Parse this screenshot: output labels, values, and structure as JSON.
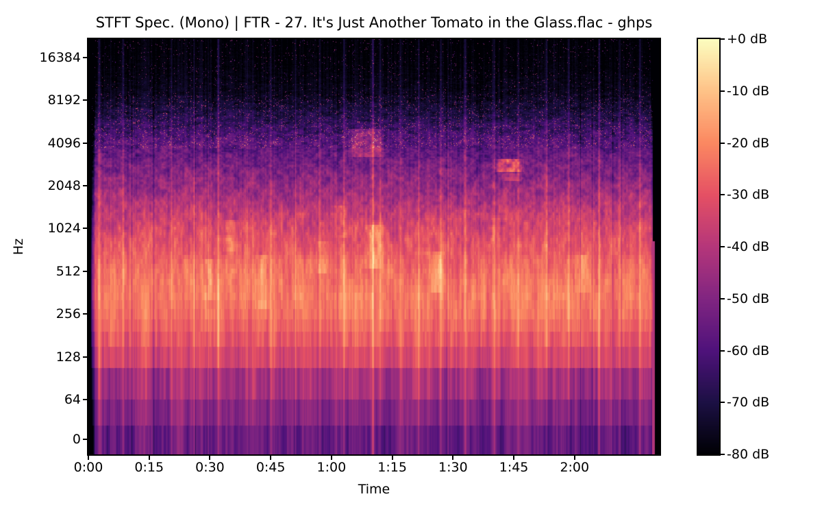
{
  "chart_data": {
    "type": "heatmap",
    "variant": "stft-spectrogram",
    "title": "STFT Spec. (Mono) | FTR - 27. It's Just Another Tomato in the Glass.flac - ghps",
    "xlabel": "Time",
    "ylabel": "Hz",
    "duration_seconds": 141,
    "max_frequency_hz": 22050,
    "y_scale": "log",
    "grid": false,
    "legend_position": "colorbar-right",
    "x_ticks": [
      {
        "label": "0:00",
        "s": 0
      },
      {
        "label": "0:15",
        "s": 15
      },
      {
        "label": "0:30",
        "s": 30
      },
      {
        "label": "0:45",
        "s": 45
      },
      {
        "label": "1:00",
        "s": 60
      },
      {
        "label": "1:15",
        "s": 75
      },
      {
        "label": "1:30",
        "s": 90
      },
      {
        "label": "1:45",
        "s": 105
      },
      {
        "label": "2:00",
        "s": 120
      }
    ],
    "y_ticks": [
      {
        "label": "16384",
        "hz": 16384
      },
      {
        "label": "8192",
        "hz": 8192
      },
      {
        "label": "4096",
        "hz": 4096
      },
      {
        "label": "2048",
        "hz": 2048
      },
      {
        "label": "1024",
        "hz": 1024
      },
      {
        "label": "512",
        "hz": 512
      },
      {
        "label": "256",
        "hz": 256
      },
      {
        "label": "128",
        "hz": 128
      },
      {
        "label": "64",
        "hz": 64
      },
      {
        "label": "0",
        "hz": 0
      }
    ],
    "colorbar": {
      "colormap": "magma",
      "db_range": [
        -80,
        0
      ],
      "ticks": [
        {
          "label": "+0 dB",
          "db": 0
        },
        {
          "label": "-10 dB",
          "db": -10
        },
        {
          "label": "-20 dB",
          "db": -20
        },
        {
          "label": "-30 dB",
          "db": -30
        },
        {
          "label": "-40 dB",
          "db": -40
        },
        {
          "label": "-50 dB",
          "db": -50
        },
        {
          "label": "-60 dB",
          "db": -60
        },
        {
          "label": "-70 dB",
          "db": -70
        },
        {
          "label": "-80 dB",
          "db": -80
        }
      ],
      "stops": [
        "#000004",
        "#1c1044",
        "#4f127b",
        "#812581",
        "#b5367a",
        "#e55064",
        "#fb8861",
        "#fec287",
        "#fcfdbf"
      ]
    },
    "spectral_profile": {
      "freqs_hz": [
        8,
        12,
        22,
        45,
        70,
        95,
        130,
        180,
        250,
        350,
        500,
        650,
        850,
        1100,
        1500,
        2000,
        2700,
        3600,
        4800,
        6500,
        9000,
        13000,
        18000,
        22050
      ],
      "mean_db": [
        -55,
        -54,
        -51,
        -49,
        -45,
        -42,
        -33,
        -28,
        -24,
        -22,
        -24,
        -27,
        -30,
        -34,
        -40,
        -46,
        -51,
        -56,
        -62,
        -70,
        -76,
        -78.5,
        -79.5,
        -80
      ],
      "spread_db": [
        8,
        8,
        8,
        8,
        9,
        9,
        8,
        7,
        6.5,
        6.5,
        7,
        7,
        8,
        9,
        9,
        9.5,
        10,
        10,
        9,
        7,
        4,
        2.5,
        1.5,
        1
      ]
    },
    "time_envelope": {
      "s": [
        0,
        0.35,
        0.9,
        1.8,
        138.8,
        139.25,
        139.3,
        141
      ],
      "db": [
        -80,
        -78,
        -30,
        0,
        0,
        -12,
        -80,
        -80
      ]
    },
    "transients": [
      {
        "t": 2.6,
        "db": 10
      },
      {
        "t": 8.5,
        "db": 8
      },
      {
        "t": 14,
        "db": 7
      },
      {
        "t": 20.5,
        "db": 9
      },
      {
        "t": 26,
        "db": 7
      },
      {
        "t": 32,
        "db": 13
      },
      {
        "t": 39,
        "db": 8
      },
      {
        "t": 45,
        "db": 7
      },
      {
        "t": 51,
        "db": 10
      },
      {
        "t": 57,
        "db": 8
      },
      {
        "t": 63,
        "db": 9
      },
      {
        "t": 70.2,
        "db": 16
      },
      {
        "t": 72,
        "db": 11
      },
      {
        "t": 77,
        "db": 8
      },
      {
        "t": 81.5,
        "db": 10
      },
      {
        "t": 87,
        "db": 8
      },
      {
        "t": 93,
        "db": 11
      },
      {
        "t": 100,
        "db": 9
      },
      {
        "t": 106,
        "db": 8
      },
      {
        "t": 113,
        "db": 9
      },
      {
        "t": 118.5,
        "db": 10
      },
      {
        "t": 126,
        "db": 12
      },
      {
        "t": 131,
        "db": 8
      },
      {
        "t": 136,
        "db": 9
      }
    ],
    "features": [
      {
        "t0": 100,
        "t1": 107.5,
        "f0": 2550,
        "f1": 3150,
        "db": 20
      },
      {
        "t0": 102,
        "t1": 107,
        "f0": 2200,
        "f1": 2500,
        "db": 12
      },
      {
        "t0": 64,
        "t1": 73,
        "f0": 3300,
        "f1": 5200,
        "db": 13
      },
      {
        "t0": 28,
        "t1": 32,
        "f0": 330,
        "f1": 620,
        "db": 8
      },
      {
        "t0": 41,
        "t1": 45,
        "f0": 300,
        "f1": 650,
        "db": 9
      },
      {
        "t0": 56,
        "t1": 60,
        "f0": 480,
        "f1": 850,
        "db": 8
      },
      {
        "t0": 68,
        "t1": 73,
        "f0": 550,
        "f1": 1100,
        "db": 9
      },
      {
        "t0": 60,
        "t1": 64,
        "f0": 900,
        "f1": 1500,
        "db": 7
      },
      {
        "t0": 84,
        "t1": 88,
        "f0": 380,
        "f1": 720,
        "db": 8
      },
      {
        "t0": 120,
        "t1": 124,
        "f0": 350,
        "f1": 680,
        "db": 8
      },
      {
        "t0": 33,
        "t1": 37,
        "f0": 700,
        "f1": 1200,
        "db": 7
      }
    ],
    "speckles": {
      "threshold_hz": 3800,
      "high_hz": 9000,
      "prob_mid": 0.05,
      "prob_high": 0.018,
      "boost_min_db": 14,
      "boost_range_db": 26
    },
    "end_spike": {
      "t0": 139.0,
      "t1": 139.65,
      "f_max_hz": 850,
      "db": -41
    },
    "text_color": "#000000",
    "background_color": "#ffffff"
  }
}
